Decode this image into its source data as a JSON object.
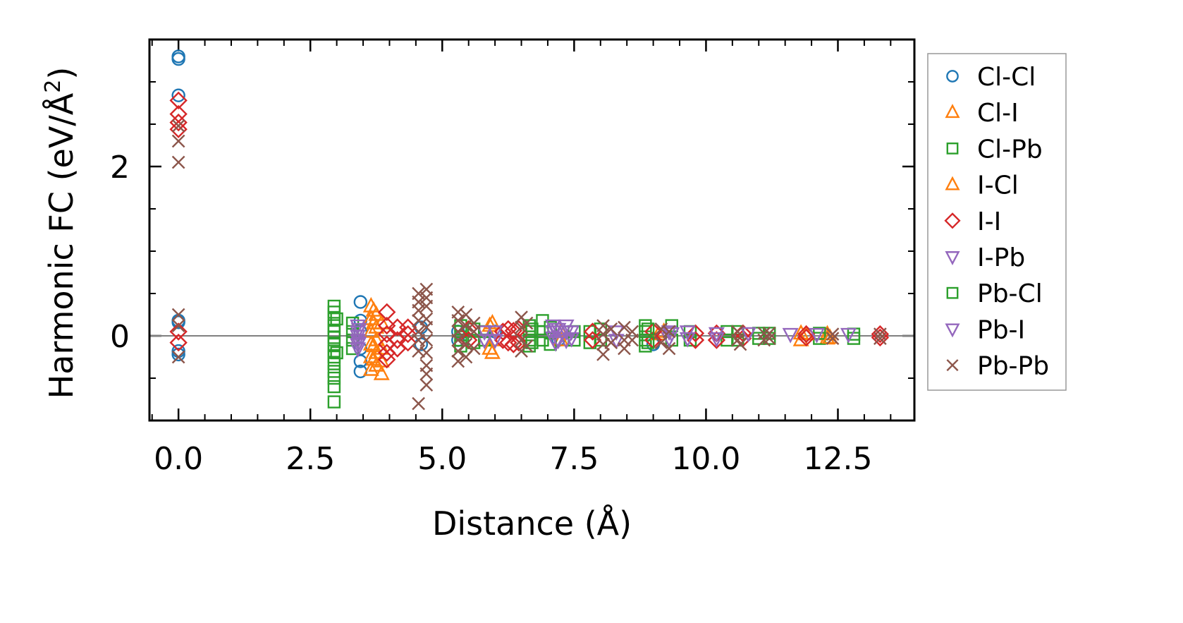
{
  "chart_data": {
    "type": "scatter",
    "xlabel": "Distance (Å)",
    "ylabel_main": "Harmonic FC (eV/Å",
    "ylabel_sup": "2",
    "ylabel_end": ")",
    "xlim": [
      -0.55,
      13.95
    ],
    "ylim": [
      -1.0,
      3.5
    ],
    "xticks": [
      0.0,
      2.5,
      5.0,
      7.5,
      10.0,
      12.5
    ],
    "xtick_labels": [
      "0.0",
      "2.5",
      "5.0",
      "7.5",
      "10.0",
      "12.5"
    ],
    "yticks": [
      0,
      2
    ],
    "ytick_labels": [
      "0",
      "2"
    ],
    "zero_line": true,
    "grid": false,
    "legend_position": "right-outside",
    "series": [
      {
        "name": "Cl-Cl",
        "marker": "circle",
        "color": "#1f77b4",
        "points": [
          [
            0,
            3.3
          ],
          [
            0,
            3.27
          ],
          [
            0,
            2.84
          ],
          [
            0,
            0.18
          ],
          [
            0,
            0.16
          ],
          [
            0,
            -0.18
          ],
          [
            0,
            -0.22
          ],
          [
            3.45,
            0.4
          ],
          [
            3.45,
            0.18
          ],
          [
            3.45,
            0.05
          ],
          [
            3.45,
            -0.15
          ],
          [
            3.45,
            -0.3
          ],
          [
            3.45,
            -0.42
          ],
          [
            4.6,
            0.1
          ],
          [
            4.6,
            -0.1
          ],
          [
            5.3,
            0.05
          ],
          [
            5.3,
            -0.05
          ],
          [
            6.0,
            0.05
          ],
          [
            7.2,
            -0.05
          ],
          [
            9.0,
            -0.1
          ]
        ]
      },
      {
        "name": "Cl-I",
        "marker": "triangle-up",
        "color": "#ff7f0e",
        "points": [
          [
            3.65,
            0.35
          ],
          [
            3.65,
            0.2
          ],
          [
            3.65,
            0.05
          ],
          [
            3.65,
            -0.1
          ],
          [
            3.65,
            -0.25
          ],
          [
            3.65,
            -0.4
          ],
          [
            3.75,
            0.25
          ],
          [
            3.75,
            0.1
          ],
          [
            3.75,
            -0.05
          ],
          [
            3.75,
            -0.2
          ],
          [
            3.75,
            -0.35
          ],
          [
            3.85,
            0.15
          ],
          [
            3.85,
            -0.15
          ],
          [
            3.85,
            -0.3
          ],
          [
            3.85,
            -0.45
          ],
          [
            5.95,
            0.15
          ],
          [
            5.95,
            -0.05
          ],
          [
            5.95,
            -0.2
          ],
          [
            7.25,
            0.05
          ],
          [
            7.25,
            -0.05
          ],
          [
            9.2,
            0.05
          ],
          [
            11.8,
            0.03
          ],
          [
            11.8,
            -0.05
          ],
          [
            12.3,
            0.02
          ],
          [
            12.3,
            -0.03
          ]
        ]
      },
      {
        "name": "Cl-Pb",
        "marker": "square",
        "color": "#2ca02c",
        "points": [
          [
            2.95,
            0.35
          ],
          [
            2.95,
            0.28
          ],
          [
            2.95,
            0.2
          ],
          [
            2.95,
            0.12
          ],
          [
            2.95,
            0.05
          ],
          [
            2.95,
            -0.02
          ],
          [
            2.95,
            -0.1
          ],
          [
            2.95,
            -0.18
          ],
          [
            2.95,
            -0.25
          ],
          [
            2.95,
            -0.33
          ],
          [
            2.95,
            -0.42
          ],
          [
            2.95,
            -0.5
          ],
          [
            2.95,
            -0.6
          ],
          [
            2.95,
            -0.78
          ],
          [
            3.3,
            0.15
          ],
          [
            3.3,
            0.05
          ],
          [
            3.3,
            -0.05
          ],
          [
            3.3,
            -0.15
          ],
          [
            5.35,
            0.12
          ],
          [
            5.35,
            0.05
          ],
          [
            5.35,
            -0.05
          ],
          [
            5.35,
            -0.12
          ],
          [
            5.6,
            0.08
          ],
          [
            5.6,
            -0.08
          ],
          [
            5.8,
            0.05
          ],
          [
            5.8,
            -0.05
          ],
          [
            6.65,
            0.12
          ],
          [
            6.65,
            0.05
          ],
          [
            6.65,
            -0.05
          ],
          [
            6.65,
            -0.12
          ],
          [
            6.9,
            0.18
          ],
          [
            6.9,
            0.05
          ],
          [
            6.9,
            -0.05
          ],
          [
            7.05,
            0.1
          ],
          [
            7.05,
            -0.1
          ],
          [
            7.5,
            0.05
          ],
          [
            7.5,
            -0.05
          ],
          [
            7.8,
            0.05
          ],
          [
            7.8,
            -0.08
          ],
          [
            8.0,
            0.08
          ],
          [
            8.0,
            -0.05
          ],
          [
            8.85,
            0.12
          ],
          [
            8.85,
            0.05
          ],
          [
            8.85,
            -0.05
          ],
          [
            8.85,
            -0.12
          ],
          [
            9.35,
            0.12
          ],
          [
            9.35,
            -0.05
          ],
          [
            9.7,
            0.05
          ],
          [
            9.7,
            -0.05
          ],
          [
            10.4,
            0.05
          ],
          [
            10.4,
            -0.05
          ],
          [
            10.6,
            0.05
          ],
          [
            10.6,
            -0.05
          ],
          [
            11.0,
            0.03
          ],
          [
            11.0,
            -0.03
          ],
          [
            11.2,
            0.03
          ],
          [
            11.2,
            -0.03
          ],
          [
            12.15,
            0.03
          ],
          [
            12.15,
            -0.03
          ],
          [
            12.8,
            0.02
          ],
          [
            12.8,
            -0.03
          ]
        ]
      },
      {
        "name": "I-Cl",
        "marker": "triangle-up",
        "color": "#ff7f0e",
        "points": [
          [
            3.7,
            0.3
          ],
          [
            3.7,
            0.15
          ],
          [
            3.7,
            -0.12
          ],
          [
            3.7,
            -0.28
          ],
          [
            5.9,
            0.12
          ],
          [
            5.9,
            -0.15
          ],
          [
            9.1,
            0.02
          ],
          [
            11.9,
            0.02
          ],
          [
            12.35,
            -0.02
          ]
        ]
      },
      {
        "name": "I-I",
        "marker": "diamond",
        "color": "#d62728",
        "points": [
          [
            0,
            2.78
          ],
          [
            0,
            2.62
          ],
          [
            0,
            2.52
          ],
          [
            0,
            2.44
          ],
          [
            0,
            0.05
          ],
          [
            0,
            -0.08
          ],
          [
            3.95,
            0.28
          ],
          [
            3.95,
            0.12
          ],
          [
            3.95,
            0.02
          ],
          [
            3.95,
            -0.1
          ],
          [
            3.95,
            -0.2
          ],
          [
            3.95,
            -0.28
          ],
          [
            4.15,
            0.1
          ],
          [
            4.15,
            -0.05
          ],
          [
            4.15,
            -0.15
          ],
          [
            4.35,
            0.1
          ],
          [
            4.35,
            0.02
          ],
          [
            4.35,
            -0.08
          ],
          [
            5.5,
            0.08
          ],
          [
            5.5,
            -0.05
          ],
          [
            6.15,
            0.05
          ],
          [
            6.15,
            -0.05
          ],
          [
            6.25,
            0.08
          ],
          [
            6.25,
            -0.08
          ],
          [
            6.35,
            0.06
          ],
          [
            6.35,
            -0.1
          ],
          [
            6.45,
            0.08
          ],
          [
            6.45,
            -0.08
          ],
          [
            7.85,
            0.05
          ],
          [
            7.85,
            -0.05
          ],
          [
            9.0,
            0.05
          ],
          [
            9.0,
            -0.05
          ],
          [
            9.8,
            0.03
          ],
          [
            9.8,
            -0.05
          ],
          [
            10.2,
            0.03
          ],
          [
            10.2,
            -0.05
          ],
          [
            10.7,
            0.03
          ],
          [
            10.7,
            -0.03
          ],
          [
            11.9,
            0.02
          ],
          [
            11.9,
            -0.02
          ],
          [
            13.3,
            0.02
          ],
          [
            13.3,
            -0.02
          ]
        ]
      },
      {
        "name": "I-Pb",
        "marker": "triangle-down",
        "color": "#9467bd",
        "points": [
          [
            3.4,
            0.12
          ],
          [
            3.4,
            0.05
          ],
          [
            3.4,
            0.0
          ],
          [
            3.4,
            -0.05
          ],
          [
            3.4,
            -0.1
          ],
          [
            3.4,
            -0.15
          ],
          [
            5.8,
            0.05
          ],
          [
            5.8,
            -0.05
          ],
          [
            6.0,
            0.05
          ],
          [
            6.0,
            -0.05
          ],
          [
            7.1,
            0.12
          ],
          [
            7.1,
            0.05
          ],
          [
            7.1,
            -0.02
          ],
          [
            7.2,
            0.08
          ],
          [
            7.2,
            -0.05
          ],
          [
            7.35,
            0.12
          ],
          [
            7.35,
            0.05
          ],
          [
            7.35,
            -0.05
          ],
          [
            7.45,
            0.05
          ],
          [
            7.45,
            -0.03
          ],
          [
            8.3,
            0.05
          ],
          [
            8.3,
            -0.05
          ],
          [
            9.3,
            0.05
          ],
          [
            9.3,
            -0.03
          ],
          [
            9.65,
            0.05
          ],
          [
            9.65,
            -0.03
          ],
          [
            10.2,
            0.03
          ],
          [
            10.2,
            -0.03
          ],
          [
            10.8,
            0.03
          ],
          [
            11.6,
            0.02
          ],
          [
            12.1,
            0.02
          ],
          [
            12.7,
            0.02
          ]
        ]
      },
      {
        "name": "Pb-Cl",
        "marker": "square",
        "color": "#2ca02c",
        "points": [
          [
            3.0,
            0.2
          ],
          [
            3.0,
            -0.2
          ],
          [
            6.7,
            0.08
          ],
          [
            6.7,
            -0.08
          ],
          [
            8.9,
            0.08
          ],
          [
            8.9,
            -0.08
          ]
        ]
      },
      {
        "name": "Pb-I",
        "marker": "triangle-down",
        "color": "#9467bd",
        "points": [
          [
            3.42,
            0.08
          ],
          [
            3.42,
            -0.08
          ],
          [
            7.15,
            0.08
          ],
          [
            7.15,
            -0.08
          ],
          [
            9.35,
            0.03
          ]
        ]
      },
      {
        "name": "Pb-Pb",
        "marker": "x",
        "color": "#8c564b",
        "points": [
          [
            0,
            2.48
          ],
          [
            0,
            2.3
          ],
          [
            0,
            2.05
          ],
          [
            0,
            0.25
          ],
          [
            0,
            0.12
          ],
          [
            0,
            -0.25
          ],
          [
            4.55,
            0.5
          ],
          [
            4.55,
            0.4
          ],
          [
            4.55,
            0.3
          ],
          [
            4.55,
            0.18
          ],
          [
            4.55,
            0.05
          ],
          [
            4.55,
            -0.05
          ],
          [
            4.55,
            -0.18
          ],
          [
            4.55,
            -0.8
          ],
          [
            4.7,
            0.55
          ],
          [
            4.7,
            0.45
          ],
          [
            4.7,
            0.35
          ],
          [
            4.7,
            0.2
          ],
          [
            4.7,
            0.1
          ],
          [
            4.7,
            -0.05
          ],
          [
            4.7,
            -0.2
          ],
          [
            4.7,
            -0.35
          ],
          [
            4.7,
            -0.45
          ],
          [
            4.7,
            -0.58
          ],
          [
            5.3,
            0.28
          ],
          [
            5.3,
            0.18
          ],
          [
            5.3,
            0.05
          ],
          [
            5.3,
            -0.05
          ],
          [
            5.3,
            -0.18
          ],
          [
            5.3,
            -0.3
          ],
          [
            5.45,
            0.25
          ],
          [
            5.45,
            0.12
          ],
          [
            5.45,
            -0.1
          ],
          [
            5.45,
            -0.25
          ],
          [
            5.6,
            0.15
          ],
          [
            5.6,
            0.05
          ],
          [
            5.6,
            -0.15
          ],
          [
            6.5,
            0.22
          ],
          [
            6.5,
            0.1
          ],
          [
            6.5,
            -0.05
          ],
          [
            6.5,
            -0.18
          ],
          [
            6.6,
            0.15
          ],
          [
            6.6,
            -0.12
          ],
          [
            8.05,
            0.12
          ],
          [
            8.05,
            0.02
          ],
          [
            8.05,
            -0.1
          ],
          [
            8.05,
            -0.22
          ],
          [
            8.2,
            0.08
          ],
          [
            8.2,
            -0.08
          ],
          [
            8.45,
            0.1
          ],
          [
            8.45,
            -0.05
          ],
          [
            8.45,
            -0.15
          ],
          [
            8.6,
            0.05
          ],
          [
            8.6,
            -0.05
          ],
          [
            9.15,
            0.08
          ],
          [
            9.15,
            -0.08
          ],
          [
            9.3,
            0.05
          ],
          [
            9.3,
            -0.15
          ],
          [
            10.6,
            0.05
          ],
          [
            10.6,
            -0.05
          ],
          [
            10.65,
            -0.1
          ],
          [
            11.1,
            0.03
          ],
          [
            11.1,
            -0.05
          ],
          [
            11.2,
            0.03
          ],
          [
            11.2,
            -0.03
          ],
          [
            12.4,
            0.02
          ],
          [
            12.4,
            -0.03
          ],
          [
            13.3,
            0.02
          ],
          [
            13.3,
            -0.03
          ]
        ]
      }
    ]
  }
}
